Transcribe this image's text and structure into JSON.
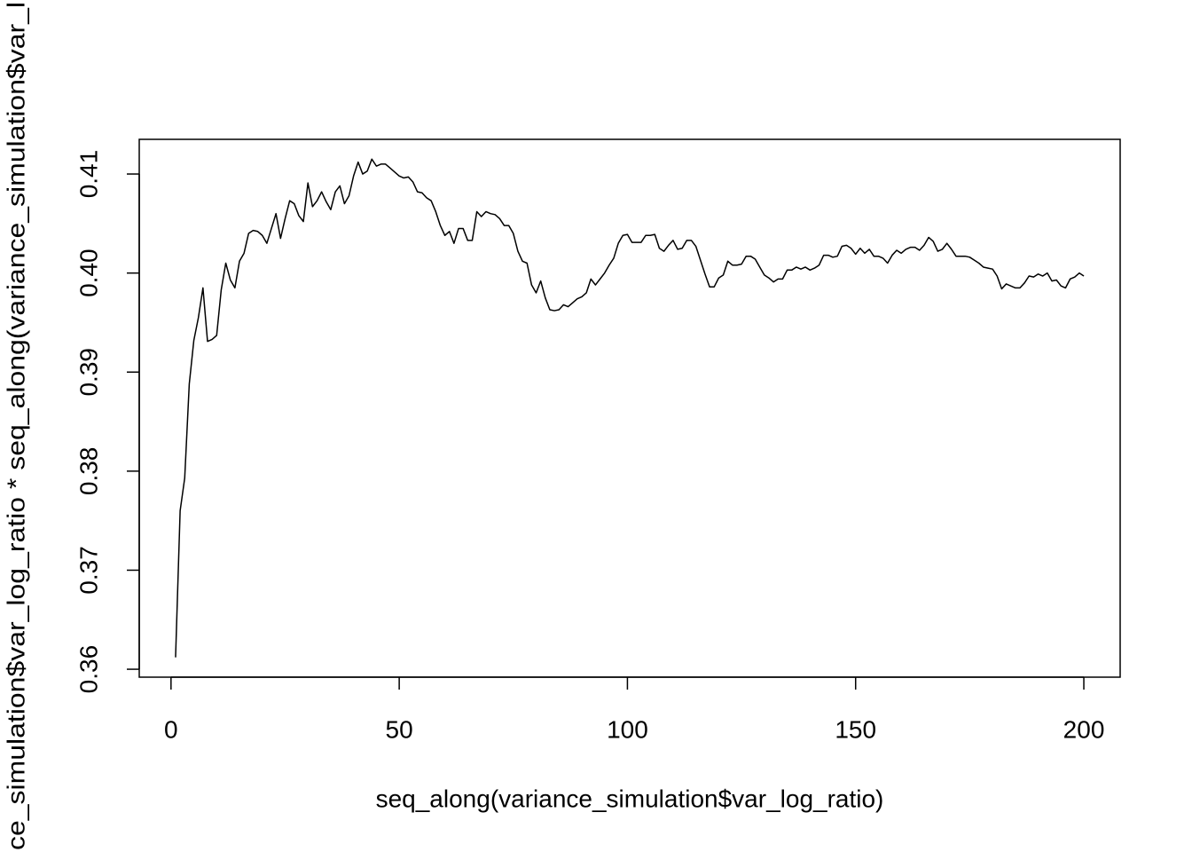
{
  "chart_data": {
    "type": "line",
    "x_label": "seq_along(variance_simulation$var_log_ratio)",
    "y_label": "ce_simulation$var_log_ratio * seq_along(variance_simulation$var_l",
    "color": "#000000",
    "xlim": [
      -6.96,
      207.96
    ],
    "ylim": [
      0.3592,
      0.4135
    ],
    "xticks": [
      0,
      50,
      100,
      150,
      200
    ],
    "yticks": [
      0.36,
      0.37,
      0.38,
      0.39,
      {
        "value": 0.4,
        "label": "0.40"
      },
      0.41
    ],
    "x": [
      1,
      2,
      3,
      4,
      5,
      6,
      7,
      8,
      9,
      10,
      11,
      12,
      13,
      14,
      15,
      16,
      17,
      18,
      19,
      20,
      21,
      22,
      23,
      24,
      25,
      26,
      27,
      28,
      29,
      30,
      31,
      32,
      33,
      34,
      35,
      36,
      37,
      38,
      39,
      40,
      41,
      42,
      43,
      44,
      45,
      46,
      47,
      48,
      49,
      50,
      51,
      52,
      53,
      54,
      55,
      56,
      57,
      58,
      59,
      60,
      61,
      62,
      63,
      64,
      65,
      66,
      67,
      68,
      69,
      70,
      71,
      72,
      73,
      74,
      75,
      76,
      77,
      78,
      79,
      80,
      81,
      82,
      83,
      84,
      85,
      86,
      87,
      88,
      89,
      90,
      91,
      92,
      93,
      94,
      95,
      96,
      97,
      98,
      99,
      100,
      101,
      102,
      103,
      104,
      105,
      106,
      107,
      108,
      109,
      110,
      111,
      112,
      113,
      114,
      115,
      116,
      117,
      118,
      119,
      120,
      121,
      122,
      123,
      124,
      125,
      126,
      127,
      128,
      129,
      130,
      131,
      132,
      133,
      134,
      135,
      136,
      137,
      138,
      139,
      140,
      141,
      142,
      143,
      144,
      145,
      146,
      147,
      148,
      149,
      150,
      151,
      152,
      153,
      154,
      155,
      156,
      157,
      158,
      159,
      160,
      161,
      162,
      163,
      164,
      165,
      166,
      167,
      168,
      169,
      170,
      171,
      172,
      173,
      174,
      175,
      176,
      177,
      178,
      179,
      180,
      181,
      182,
      183,
      184,
      185,
      186,
      187,
      188,
      189,
      190,
      191,
      192,
      193,
      194,
      195,
      196,
      197,
      198,
      199,
      200
    ],
    "values": [
      0.3612,
      0.376,
      0.3793,
      0.3888,
      0.3932,
      0.3955,
      0.3985,
      0.3931,
      0.3933,
      0.3937,
      0.3983,
      0.401,
      0.3993,
      0.3985,
      0.4012,
      0.402,
      0.404,
      0.4043,
      0.4042,
      0.4038,
      0.403,
      0.4045,
      0.406,
      0.4035,
      0.4055,
      0.4073,
      0.407,
      0.4058,
      0.4052,
      0.4091,
      0.4067,
      0.4073,
      0.4082,
      0.4072,
      0.4064,
      0.4082,
      0.4088,
      0.407,
      0.4078,
      0.4098,
      0.4112,
      0.41,
      0.4103,
      0.4115,
      0.4108,
      0.411,
      0.411,
      0.4106,
      0.4102,
      0.4098,
      0.4096,
      0.4097,
      0.4092,
      0.4082,
      0.4081,
      0.4076,
      0.4073,
      0.4062,
      0.4048,
      0.4038,
      0.4042,
      0.403,
      0.4045,
      0.4045,
      0.4033,
      0.4033,
      0.4062,
      0.4057,
      0.4062,
      0.406,
      0.4059,
      0.4055,
      0.4048,
      0.4048,
      0.404,
      0.4022,
      0.4012,
      0.401,
      0.3988,
      0.398,
      0.3992,
      0.3975,
      0.3963,
      0.3962,
      0.3963,
      0.3968,
      0.3966,
      0.397,
      0.3974,
      0.3976,
      0.398,
      0.3994,
      0.3988,
      0.3994,
      0.4,
      0.4008,
      0.4015,
      0.403,
      0.4038,
      0.4039,
      0.4031,
      0.4031,
      0.4031,
      0.4038,
      0.4038,
      0.4039,
      0.4025,
      0.4022,
      0.4028,
      0.4033,
      0.4024,
      0.4025,
      0.4033,
      0.4033,
      0.4027,
      0.4013,
      0.3999,
      0.3986,
      0.3986,
      0.3995,
      0.3998,
      0.4012,
      0.4008,
      0.4008,
      0.4009,
      0.4017,
      0.4017,
      0.4014,
      0.4006,
      0.3998,
      0.3995,
      0.3991,
      0.3994,
      0.3994,
      0.4003,
      0.4003,
      0.4006,
      0.4004,
      0.4006,
      0.4003,
      0.4005,
      0.4008,
      0.4018,
      0.4018,
      0.4016,
      0.4017,
      0.4027,
      0.4028,
      0.4025,
      0.4019,
      0.4025,
      0.402,
      0.4024,
      0.4017,
      0.4017,
      0.4015,
      0.401,
      0.4018,
      0.4023,
      0.402,
      0.4024,
      0.4026,
      0.4026,
      0.4023,
      0.4028,
      0.4036,
      0.4032,
      0.4022,
      0.4024,
      0.403,
      0.4024,
      0.4017,
      0.4017,
      0.4017,
      0.4016,
      0.4013,
      0.401,
      0.4006,
      0.4005,
      0.4004,
      0.3997,
      0.3984,
      0.3989,
      0.3987,
      0.3985,
      0.3985,
      0.399,
      0.3997,
      0.3996,
      0.3999,
      0.3997,
      0.4,
      0.3992,
      0.3993,
      0.3987,
      0.3985,
      0.3994,
      0.3996,
      0.4,
      0.3997
    ]
  }
}
